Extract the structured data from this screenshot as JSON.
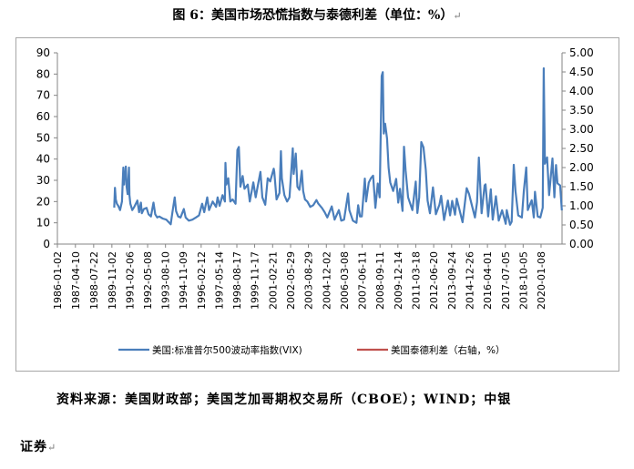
{
  "figure": {
    "title": "图 6：美国市场恐慌指数与泰德利差（单位：%）",
    "source_line1": "资料来源：美国财政部；美国芝加哥期权交易所（CBOE）；WIND；中银",
    "source_line2": "证券",
    "para_mark": "↵"
  },
  "chart_data": {
    "type": "line",
    "left_axis": {
      "min": 0,
      "max": 90,
      "ticks": [
        0,
        10,
        20,
        30,
        40,
        50,
        60,
        70,
        80,
        90
      ]
    },
    "right_axis": {
      "min": 0,
      "max": 5,
      "ticks": [
        "0.00",
        "0.50",
        "1.00",
        "1.50",
        "2.00",
        "2.50",
        "3.00",
        "3.50",
        "4.00",
        "4.50",
        "5.00"
      ]
    },
    "x_range": [
      "1986-01-02",
      "2021-06-30"
    ],
    "x_tick_labels": [
      "1986-01-02",
      "1987-04-10",
      "1988-07-22",
      "1989-11-02",
      "1991-02-06",
      "1992-05-08",
      "1993-08-10",
      "1994-11-09",
      "1996-02-12",
      "1997-05-14",
      "1998-08-17",
      "1999-11-17",
      "2001-02-21",
      "2002-05-29",
      "2003-08-29",
      "2004-12-02",
      "2006-03-08",
      "2007-06-11",
      "2008-09-11",
      "2009-12-14",
      "2011-03-18",
      "2012-06-20",
      "2013-09-24",
      "2014-12-26",
      "2016-04-01",
      "2017-07-05",
      "2018-10-05",
      "2020-01-08"
    ],
    "legend": {
      "position": "bottom"
    },
    "grid": false,
    "series": [
      {
        "name": "美国:标准普尔500波动率指数(VIX)",
        "axis": "left",
        "color": "#4a7ebb",
        "points": [
          [
            "1990-01-02",
            17.2
          ],
          [
            "1990-01-20",
            26.5
          ],
          [
            "1990-02-10",
            21.0
          ],
          [
            "1990-03-10",
            19.0
          ],
          [
            "1990-04-15",
            18.0
          ],
          [
            "1990-06-01",
            16.0
          ],
          [
            "1990-07-20",
            20.0
          ],
          [
            "1990-08-10",
            30.0
          ],
          [
            "1990-08-23",
            36.0
          ],
          [
            "1990-09-10",
            28.0
          ],
          [
            "1990-09-25",
            33.0
          ],
          [
            "1990-10-10",
            31.5
          ],
          [
            "1990-10-25",
            36.5
          ],
          [
            "1990-11-15",
            27.0
          ],
          [
            "1990-12-10",
            23.5
          ],
          [
            "1991-01-15",
            36.0
          ],
          [
            "1991-01-28",
            23.0
          ],
          [
            "1991-02-20",
            19.0
          ],
          [
            "1991-04-10",
            16.0
          ],
          [
            "1991-06-01",
            17.5
          ],
          [
            "1991-08-19",
            20.5
          ],
          [
            "1991-10-01",
            15.0
          ],
          [
            "1991-11-18",
            19.5
          ],
          [
            "1991-12-10",
            14.5
          ],
          [
            "1992-02-01",
            16.5
          ],
          [
            "1992-04-10",
            17.0
          ],
          [
            "1992-06-01",
            14.0
          ],
          [
            "1992-08-01",
            13.0
          ],
          [
            "1992-10-05",
            19.5
          ],
          [
            "1992-11-20",
            14.0
          ],
          [
            "1993-01-10",
            12.5
          ],
          [
            "1993-03-01",
            13.0
          ],
          [
            "1993-06-01",
            12.0
          ],
          [
            "1993-09-01",
            11.5
          ],
          [
            "1993-12-22",
            9.3
          ],
          [
            "1994-02-04",
            15.0
          ],
          [
            "1994-04-04",
            22.0
          ],
          [
            "1994-05-10",
            15.5
          ],
          [
            "1994-07-01",
            13.0
          ],
          [
            "1994-09-01",
            12.5
          ],
          [
            "1994-11-23",
            16.5
          ],
          [
            "1995-01-10",
            12.5
          ],
          [
            "1995-04-01",
            11.0
          ],
          [
            "1995-07-01",
            11.5
          ],
          [
            "1995-10-01",
            12.5
          ],
          [
            "1995-12-20",
            13.5
          ],
          [
            "1996-03-08",
            19.0
          ],
          [
            "1996-05-01",
            15.0
          ],
          [
            "1996-07-16",
            22.0
          ],
          [
            "1996-09-01",
            16.0
          ],
          [
            "1996-12-05",
            20.0
          ],
          [
            "1997-03-01",
            17.5
          ],
          [
            "1997-04-11",
            22.0
          ],
          [
            "1997-06-01",
            18.0
          ],
          [
            "1997-08-15",
            23.0
          ],
          [
            "1997-10-15",
            20.0
          ],
          [
            "1997-10-28",
            38.2
          ],
          [
            "1997-11-20",
            28.0
          ],
          [
            "1998-01-09",
            31.0
          ],
          [
            "1998-03-01",
            20.0
          ],
          [
            "1998-05-01",
            21.0
          ],
          [
            "1998-07-15",
            19.0
          ],
          [
            "1998-08-31",
            44.3
          ],
          [
            "1998-10-08",
            45.7
          ],
          [
            "1998-11-15",
            27.0
          ],
          [
            "1999-01-14",
            32.0
          ],
          [
            "1999-03-01",
            26.0
          ],
          [
            "1999-05-25",
            28.0
          ],
          [
            "1999-07-15",
            20.0
          ],
          [
            "1999-10-15",
            29.0
          ],
          [
            "1999-12-15",
            22.0
          ],
          [
            "2000-01-28",
            26.5
          ],
          [
            "2000-04-14",
            34.0
          ],
          [
            "2000-06-01",
            22.0
          ],
          [
            "2000-08-15",
            18.5
          ],
          [
            "2000-10-18",
            31.0
          ],
          [
            "2000-12-20",
            29.5
          ],
          [
            "2001-03-22",
            35.5
          ],
          [
            "2001-04-04",
            34.0
          ],
          [
            "2001-06-01",
            21.0
          ],
          [
            "2001-08-15",
            24.0
          ],
          [
            "2001-09-21",
            43.7
          ],
          [
            "2001-10-15",
            31.0
          ],
          [
            "2001-12-20",
            23.0
          ],
          [
            "2002-03-01",
            20.0
          ],
          [
            "2002-05-01",
            22.0
          ],
          [
            "2002-07-23",
            45.1
          ],
          [
            "2002-08-15",
            33.0
          ],
          [
            "2002-10-09",
            42.6
          ],
          [
            "2002-11-20",
            27.0
          ],
          [
            "2003-01-10",
            25.5
          ],
          [
            "2003-03-11",
            34.5
          ],
          [
            "2003-04-15",
            25.0
          ],
          [
            "2003-06-01",
            21.0
          ],
          [
            "2003-08-01",
            20.0
          ],
          [
            "2003-10-15",
            17.5
          ],
          [
            "2003-12-31",
            18.3
          ],
          [
            "2004-03-22",
            20.7
          ],
          [
            "2004-05-10",
            19.0
          ],
          [
            "2004-08-10",
            17.0
          ],
          [
            "2004-10-20",
            15.0
          ],
          [
            "2004-12-27",
            12.5
          ],
          [
            "2005-04-20",
            17.7
          ],
          [
            "2005-07-01",
            11.5
          ],
          [
            "2005-10-20",
            16.0
          ],
          [
            "2005-12-20",
            11.0
          ],
          [
            "2006-03-01",
            11.5
          ],
          [
            "2006-06-13",
            23.8
          ],
          [
            "2006-07-15",
            16.0
          ],
          [
            "2006-10-15",
            11.0
          ],
          [
            "2007-01-15",
            10.0
          ],
          [
            "2007-02-27",
            18.3
          ],
          [
            "2007-04-15",
            13.0
          ],
          [
            "2007-06-01",
            13.0
          ],
          [
            "2007-08-16",
            30.8
          ],
          [
            "2007-09-20",
            20.0
          ],
          [
            "2007-11-26",
            28.9
          ],
          [
            "2008-01-22",
            31.0
          ],
          [
            "2008-03-17",
            32.2
          ],
          [
            "2008-05-15",
            17.0
          ],
          [
            "2008-07-15",
            28.5
          ],
          [
            "2008-09-01",
            22.0
          ],
          [
            "2008-10-24",
            79.1
          ],
          [
            "2008-11-20",
            80.9
          ],
          [
            "2008-12-15",
            52.0
          ],
          [
            "2009-01-20",
            56.6
          ],
          [
            "2009-03-09",
            49.7
          ],
          [
            "2009-04-20",
            36.0
          ],
          [
            "2009-06-01",
            29.0
          ],
          [
            "2009-08-15",
            25.0
          ],
          [
            "2009-10-30",
            30.7
          ],
          [
            "2009-12-24",
            19.5
          ],
          [
            "2010-02-05",
            26.0
          ],
          [
            "2010-04-12",
            15.6
          ],
          [
            "2010-05-20",
            45.8
          ],
          [
            "2010-07-01",
            34.5
          ],
          [
            "2010-09-01",
            22.0
          ],
          [
            "2010-12-20",
            16.0
          ],
          [
            "2011-03-16",
            29.4
          ],
          [
            "2011-04-28",
            14.6
          ],
          [
            "2011-06-15",
            22.0
          ],
          [
            "2011-08-08",
            48.0
          ],
          [
            "2011-10-03",
            45.5
          ],
          [
            "2011-11-30",
            35.0
          ],
          [
            "2012-01-15",
            20.5
          ],
          [
            "2012-03-15",
            14.5
          ],
          [
            "2012-06-01",
            26.7
          ],
          [
            "2012-08-15",
            14.0
          ],
          [
            "2012-11-15",
            18.5
          ],
          [
            "2012-12-28",
            22.7
          ],
          [
            "2013-03-14",
            11.3
          ],
          [
            "2013-06-20",
            20.5
          ],
          [
            "2013-08-15",
            13.5
          ],
          [
            "2013-10-08",
            20.3
          ],
          [
            "2013-12-20",
            13.8
          ],
          [
            "2014-02-03",
            21.4
          ],
          [
            "2014-04-15",
            16.0
          ],
          [
            "2014-07-03",
            10.3
          ],
          [
            "2014-10-15",
            26.3
          ],
          [
            "2014-12-16",
            23.6
          ],
          [
            "2015-02-01",
            20.0
          ],
          [
            "2015-05-15",
            12.5
          ],
          [
            "2015-07-08",
            19.7
          ],
          [
            "2015-08-24",
            40.7
          ],
          [
            "2015-09-28",
            27.6
          ],
          [
            "2015-11-03",
            14.5
          ],
          [
            "2016-01-20",
            27.6
          ],
          [
            "2016-02-11",
            28.1
          ],
          [
            "2016-04-20",
            13.0
          ],
          [
            "2016-06-27",
            25.8
          ],
          [
            "2016-08-15",
            11.5
          ],
          [
            "2016-11-04",
            22.5
          ],
          [
            "2017-01-15",
            11.0
          ],
          [
            "2017-04-13",
            15.9
          ],
          [
            "2017-07-14",
            9.5
          ],
          [
            "2017-08-10",
            16.0
          ],
          [
            "2017-11-03",
            9.1
          ],
          [
            "2017-12-15",
            10.5
          ],
          [
            "2018-02-05",
            37.3
          ],
          [
            "2018-03-23",
            24.9
          ],
          [
            "2018-06-01",
            13.5
          ],
          [
            "2018-09-01",
            12.5
          ],
          [
            "2018-10-24",
            25.2
          ],
          [
            "2018-12-24",
            36.1
          ],
          [
            "2019-02-01",
            16.0
          ],
          [
            "2019-05-13",
            20.6
          ],
          [
            "2019-07-05",
            12.5
          ],
          [
            "2019-08-05",
            24.6
          ],
          [
            "2019-10-15",
            13.0
          ],
          [
            "2019-12-20",
            12.5
          ],
          [
            "2020-02-21",
            17.1
          ],
          [
            "2020-03-16",
            82.7
          ],
          [
            "2020-04-15",
            37.8
          ],
          [
            "2020-06-11",
            40.8
          ],
          [
            "2020-08-01",
            23.0
          ],
          [
            "2020-10-28",
            40.3
          ],
          [
            "2020-12-15",
            22.0
          ],
          [
            "2021-01-27",
            37.2
          ],
          [
            "2021-03-04",
            28.6
          ],
          [
            "2021-05-12",
            27.6
          ],
          [
            "2021-06-25",
            15.8
          ]
        ]
      },
      {
        "name": "美国泰德利差（右轴，%）",
        "axis": "right",
        "color": "#c0504d",
        "points": []
      }
    ]
  }
}
